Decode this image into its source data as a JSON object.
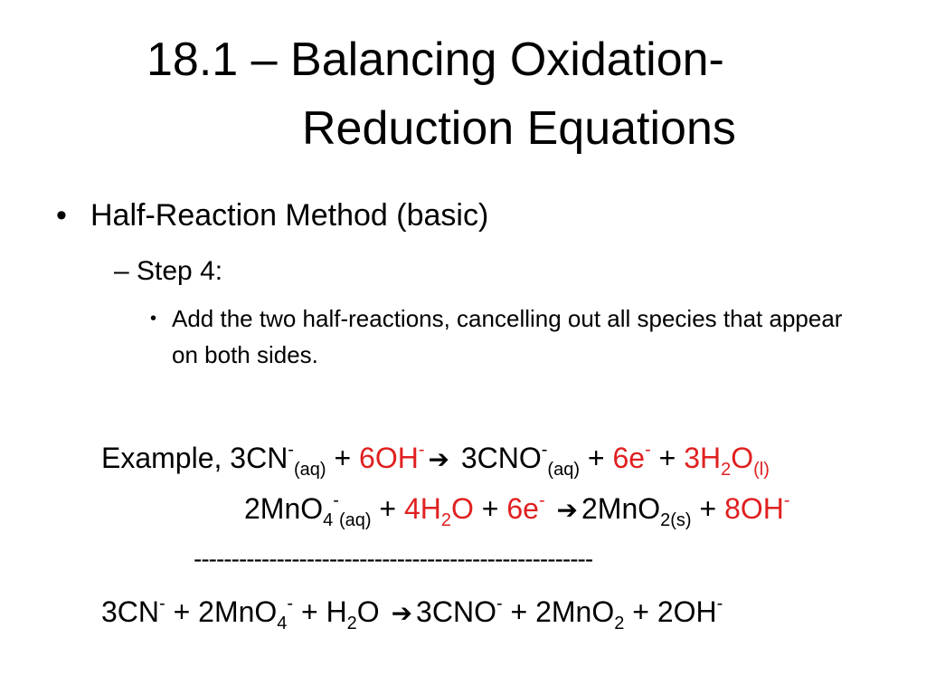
{
  "title": {
    "line1": "18.1 – Balancing Oxidation-",
    "line2": "Reduction Equations"
  },
  "bullets": {
    "level1": {
      "marker": "•",
      "text": "Half-Reaction Method (basic)"
    },
    "level2": {
      "text": "– Step 4:"
    },
    "level3": {
      "marker": "•",
      "text": "Add the two half-reactions, cancelling out all species that appear on both sides."
    }
  },
  "equations": {
    "eq1": {
      "prefix": "Example, 3CN",
      "sup_minus": "-",
      "aq": "(aq)",
      "plus": "+",
      "oh_coef": "6OH",
      "arrow": "➔",
      "cno": "3CNO",
      "e_coef": "6e",
      "h2o_coef": "3H",
      "two": "2",
      "o": "O",
      "l": "(l)"
    },
    "eq2": {
      "mno4": "2MnO",
      "four": "4",
      "minus": "-",
      "aq": "(aq)",
      "plus": "+",
      "h2o_coef": "4H",
      "two": "2",
      "o": "O",
      "e_coef": "6e",
      "arrow": "➔",
      "mno2": "2MnO",
      "two_s": "2(s)",
      "oh_coef": "8OH"
    },
    "divider": "-----------------------------------------------------",
    "eq3": {
      "cn": "3CN",
      "minus": "-",
      "plus": "+",
      "mno4": "2MnO",
      "four": "4",
      "h": "H",
      "two": "2",
      "o": "O",
      "arrow": "➔",
      "cno": "3CNO",
      "mno2": "2MnO",
      "oh": "2OH"
    }
  },
  "colors": {
    "highlight": "#e02020",
    "text": "#000000",
    "background": "#ffffff"
  }
}
